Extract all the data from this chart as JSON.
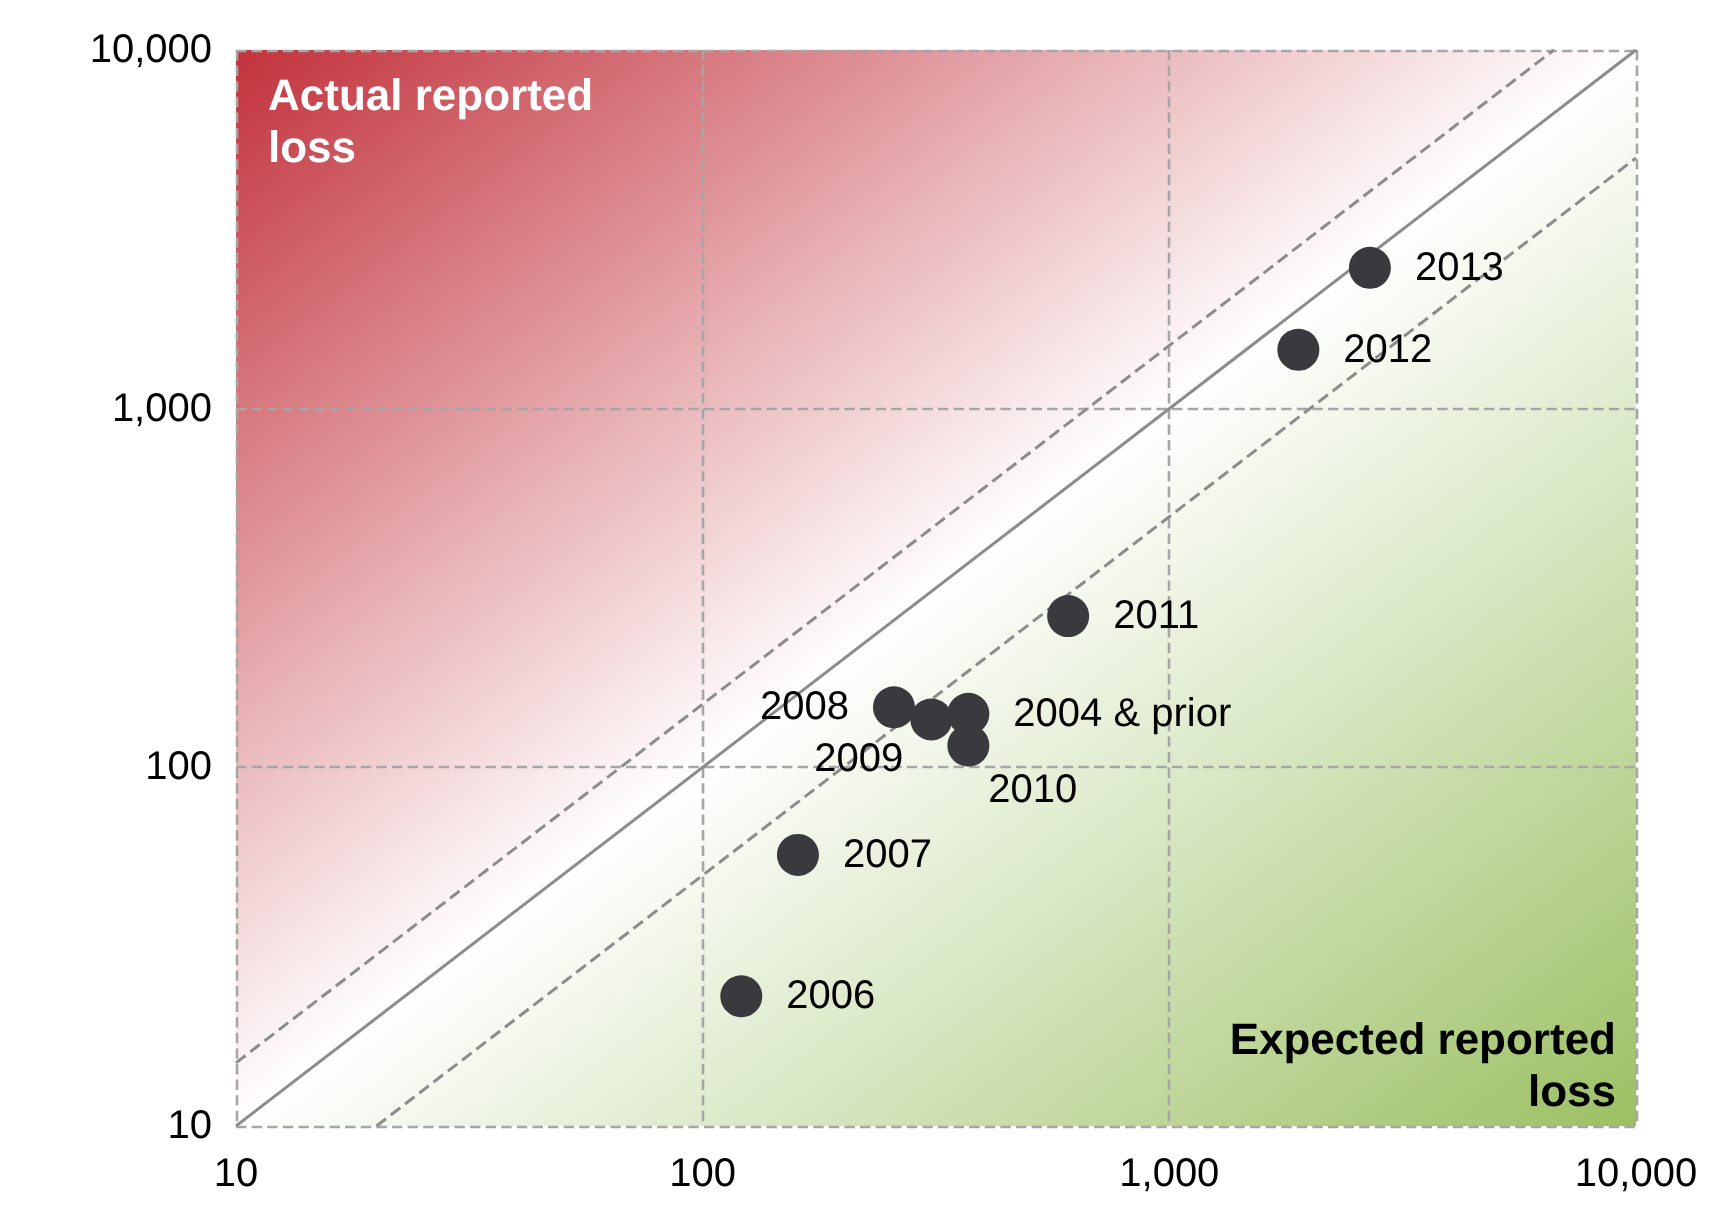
{
  "chart_data": {
    "type": "scatter",
    "annotations": [
      "Actual reported loss",
      "Expected reported loss"
    ],
    "log": "xy",
    "grid": true,
    "xlim": [
      10,
      10000
    ],
    "ylim": [
      10,
      10000
    ],
    "xticks": [
      {
        "value": 10,
        "label": "10"
      },
      {
        "value": 100,
        "label": "100"
      },
      {
        "value": 1000,
        "label": "1,000"
      },
      {
        "value": 10000,
        "label": "10,000"
      }
    ],
    "yticks": [
      {
        "value": 10,
        "label": "10"
      },
      {
        "value": 100,
        "label": "100"
      },
      {
        "value": 1000,
        "label": "1,000"
      },
      {
        "value": 10000,
        "label": "10,000"
      }
    ],
    "marker": "circle",
    "series": [
      {
        "type": "line",
        "color": "#8c8c8c",
        "line_style": "dashed",
        "marker": "none",
        "x": [
          10,
          6667
        ],
        "values": [
          15,
          10000
        ]
      },
      {
        "type": "line",
        "color": "#8c8c8c",
        "line_style": "solid",
        "marker": "none",
        "x": [
          10,
          10000
        ],
        "values": [
          10,
          10000
        ]
      },
      {
        "type": "line",
        "color": "#8c8c8c",
        "line_style": "dashed",
        "marker": "none",
        "x": [
          20,
          10000
        ],
        "values": [
          10,
          5000
        ]
      },
      {
        "name": "2013",
        "color": "#3a3a3e",
        "x": [
          2690
        ],
        "values": [
          2470
        ]
      },
      {
        "name": "2012",
        "color": "#3a3a3e",
        "x": [
          1890
        ],
        "values": [
          1460
        ]
      },
      {
        "name": "2011",
        "color": "#3a3a3e",
        "x": [
          607
        ],
        "values": [
          264
        ]
      },
      {
        "name": "2008",
        "color": "#3a3a3e",
        "x": [
          257
        ],
        "values": [
          147
        ]
      },
      {
        "name": "2009",
        "color": "#3a3a3e",
        "x": [
          309
        ],
        "values": [
          136
        ]
      },
      {
        "name": "2004 & prior",
        "color": "#3a3a3e",
        "x": [
          371
        ],
        "values": [
          141
        ]
      },
      {
        "name": "2010",
        "color": "#3a3a3e",
        "x": [
          371
        ],
        "values": [
          115
        ]
      },
      {
        "name": "2007",
        "color": "#3a3a3e",
        "x": [
          160
        ],
        "values": [
          57
        ]
      },
      {
        "name": "2006",
        "color": "#3a3a3e",
        "x": [
          121
        ],
        "values": [
          23
        ]
      }
    ]
  }
}
